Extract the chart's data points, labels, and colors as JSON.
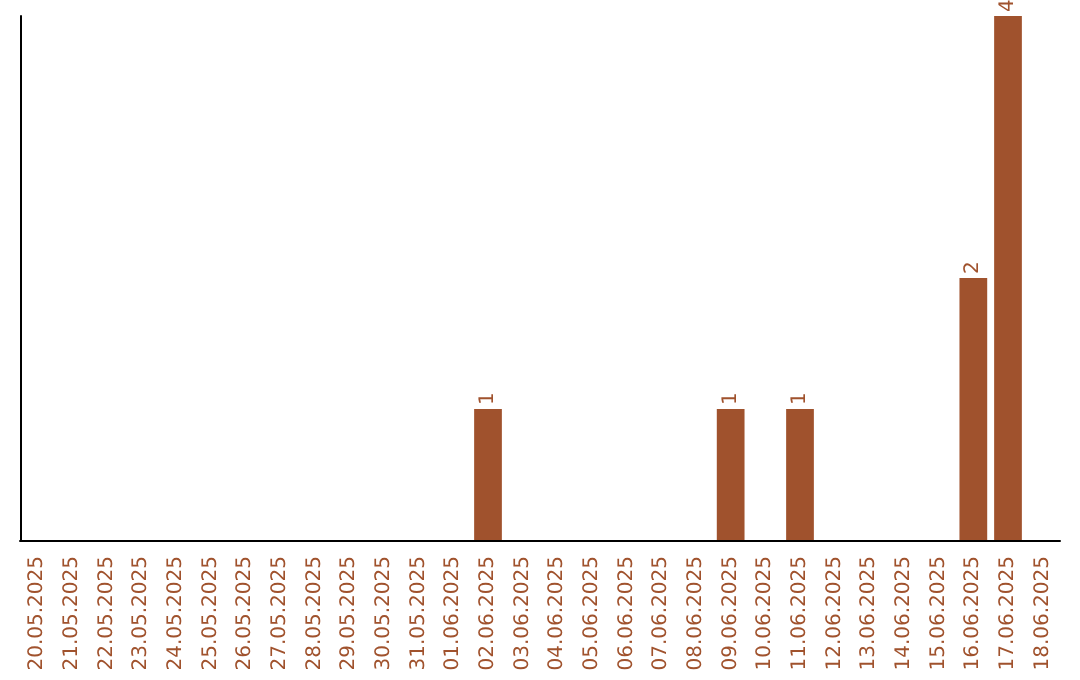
{
  "chart_data": {
    "type": "bar",
    "categories": [
      "20.05.2025",
      "21.05.2025",
      "22.05.2025",
      "23.05.2025",
      "24.05.2025",
      "25.05.2025",
      "26.05.2025",
      "27.05.2025",
      "28.05.2025",
      "29.05.2025",
      "30.05.2025",
      "31.05.2025",
      "01.06.2025",
      "02.06.2025",
      "03.06.2025",
      "04.06.2025",
      "05.06.2025",
      "06.06.2025",
      "07.06.2025",
      "08.06.2025",
      "09.06.2025",
      "10.06.2025",
      "11.06.2025",
      "12.06.2025",
      "13.06.2025",
      "14.06.2025",
      "15.06.2025",
      "16.06.2025",
      "17.06.2025",
      "18.06.2025"
    ],
    "values": [
      null,
      null,
      null,
      null,
      null,
      null,
      null,
      null,
      null,
      null,
      null,
      null,
      null,
      1,
      null,
      null,
      null,
      null,
      null,
      null,
      1,
      null,
      1,
      null,
      null,
      null,
      null,
      2,
      4,
      null
    ],
    "data_labels": true,
    "color": "#a0522d",
    "tick_labels": "x",
    "grid": false
  }
}
